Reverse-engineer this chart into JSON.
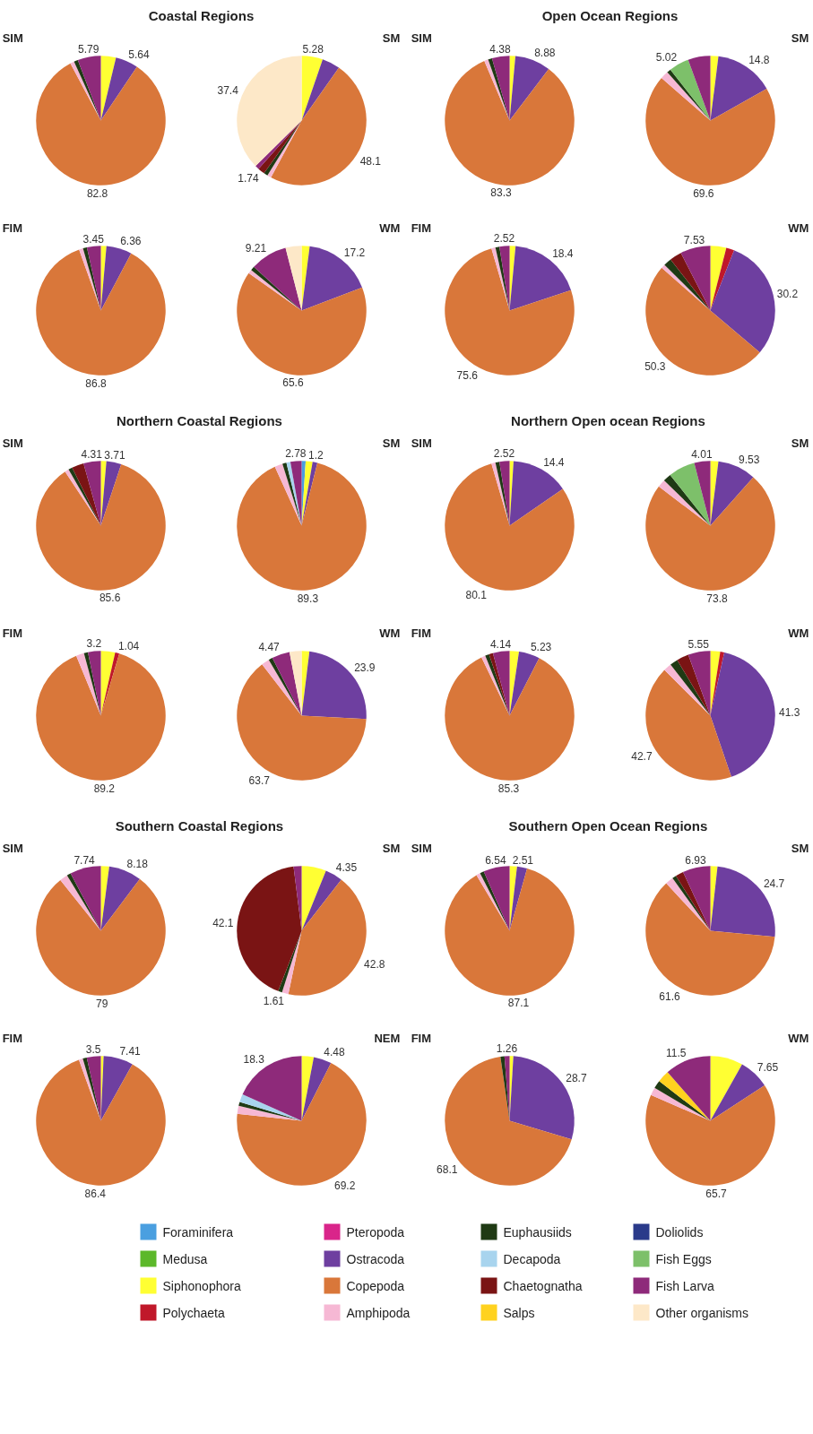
{
  "chart_data": [
    {
      "type": "pie",
      "title": "SIM",
      "legend": "bottom",
      "annotations": [
        "Coastal Regions"
      ],
      "categories": [
        "Foraminifera",
        "Medusa",
        "Siphonophora",
        "Polychaeta",
        "Pteropoda",
        "Ostracoda",
        "Copepoda",
        "Amphipoda",
        "Euphausiids",
        "Decapoda",
        "Chaetognatha",
        "Salps",
        "Doliolids",
        "Fish Eggs",
        "Fish Larva",
        "Other organisms"
      ],
      "values": [
        0,
        0,
        3.77,
        0,
        0,
        5.64,
        82.8,
        1,
        1,
        0,
        0,
        0,
        0,
        0,
        5.79,
        0
      ],
      "colors": [
        "#4a9fe0",
        "#5cb82a",
        "#ffff33",
        "#c0182a",
        "#d9258a",
        "#6e3fa0",
        "#d9773a",
        "#f6b8d4",
        "#1f3a14",
        "#a8d4ee",
        "#7a1414",
        "#ffd21f",
        "#2a3a8a",
        "#7dc06a",
        "#8e2a7a",
        "#fde8c8"
      ],
      "value_labels": [
        null,
        null,
        null,
        null,
        null,
        "5.64",
        "82.8",
        null,
        null,
        null,
        null,
        null,
        null,
        null,
        "5.79",
        null
      ]
    },
    {
      "type": "pie",
      "title": "SM",
      "categories": [
        null,
        null,
        null,
        null,
        null,
        null,
        null,
        null,
        null,
        null,
        null,
        null,
        null,
        null,
        null,
        null
      ],
      "values": [
        0,
        0,
        5.28,
        0,
        0,
        4.48,
        48.1,
        1,
        1,
        0,
        1.74,
        0,
        0,
        0,
        1,
        37.4
      ],
      "colors": [
        "#4a9fe0",
        "#5cb82a",
        "#ffff33",
        "#c0182a",
        "#d9258a",
        "#6e3fa0",
        "#d9773a",
        "#f6b8d4",
        "#1f3a14",
        "#a8d4ee",
        "#7a1414",
        "#ffd21f",
        "#2a3a8a",
        "#7dc06a",
        "#8e2a7a",
        "#fde8c8"
      ],
      "value_labels": [
        null,
        null,
        "5.28",
        null,
        null,
        null,
        "48.1",
        null,
        null,
        null,
        "1.74",
        null,
        null,
        null,
        null,
        "37.4"
      ]
    },
    {
      "type": "pie",
      "title": "FIM",
      "categories": [
        null,
        null,
        null,
        null,
        null,
        null,
        null,
        null,
        null,
        null,
        null,
        null,
        null,
        null,
        null,
        null
      ],
      "values": [
        0,
        0,
        1.39,
        0,
        0,
        6.36,
        86.8,
        1,
        1,
        0,
        0,
        0,
        0,
        0,
        3.45,
        0
      ],
      "colors": [
        "#4a9fe0",
        "#5cb82a",
        "#ffff33",
        "#c0182a",
        "#d9258a",
        "#6e3fa0",
        "#d9773a",
        "#f6b8d4",
        "#1f3a14",
        "#a8d4ee",
        "#7a1414",
        "#ffd21f",
        "#2a3a8a",
        "#7dc06a",
        "#8e2a7a",
        "#fde8c8"
      ],
      "value_labels": [
        null,
        null,
        null,
        null,
        null,
        "6.36",
        "86.8",
        null,
        null,
        null,
        null,
        null,
        null,
        null,
        "3.45",
        null
      ]
    },
    {
      "type": "pie",
      "title": "WM",
      "categories": [
        null,
        null,
        null,
        null,
        null,
        null,
        null,
        null,
        null,
        null,
        null,
        null,
        null,
        null,
        null,
        null
      ],
      "values": [
        0,
        0,
        1.99,
        0,
        0,
        17.2,
        65.6,
        1,
        1,
        0,
        0,
        0,
        0,
        0,
        9.21,
        4
      ],
      "colors": [
        "#4a9fe0",
        "#5cb82a",
        "#ffff33",
        "#c0182a",
        "#d9258a",
        "#6e3fa0",
        "#d9773a",
        "#f6b8d4",
        "#1f3a14",
        "#a8d4ee",
        "#7a1414",
        "#ffd21f",
        "#2a3a8a",
        "#7dc06a",
        "#8e2a7a",
        "#fde8c8"
      ],
      "value_labels": [
        null,
        null,
        null,
        null,
        null,
        "17.2",
        "65.6",
        null,
        null,
        null,
        null,
        null,
        null,
        null,
        "9.21",
        null
      ]
    },
    {
      "type": "pie",
      "title": "SIM",
      "annotations": [
        "Open Ocean Regions"
      ],
      "categories": [
        null,
        null,
        null,
        null,
        null,
        null,
        null,
        null,
        null,
        null,
        null,
        null,
        null,
        null,
        null,
        null
      ],
      "values": [
        0,
        0,
        1.44,
        0,
        0,
        8.88,
        83.3,
        1,
        1,
        0,
        0,
        0,
        0,
        0,
        4.38,
        0
      ],
      "colors": [
        "#4a9fe0",
        "#5cb82a",
        "#ffff33",
        "#c0182a",
        "#d9258a",
        "#6e3fa0",
        "#d9773a",
        "#f6b8d4",
        "#1f3a14",
        "#a8d4ee",
        "#7a1414",
        "#ffd21f",
        "#2a3a8a",
        "#7dc06a",
        "#8e2a7a",
        "#fde8c8"
      ],
      "value_labels": [
        null,
        null,
        null,
        null,
        null,
        "8.88",
        "83.3",
        null,
        null,
        null,
        null,
        null,
        null,
        null,
        "4.38",
        null
      ]
    },
    {
      "type": "pie",
      "title": "SM",
      "categories": [
        null,
        null,
        null,
        null,
        null,
        null,
        null,
        null,
        null,
        null,
        null,
        null,
        null,
        null,
        null,
        null
      ],
      "values": [
        0,
        0,
        2,
        0,
        0,
        14.8,
        69.6,
        2,
        1,
        0,
        0,
        0,
        0,
        5.02,
        5.58,
        0
      ],
      "colors": [
        "#4a9fe0",
        "#5cb82a",
        "#ffff33",
        "#c0182a",
        "#d9258a",
        "#6e3fa0",
        "#d9773a",
        "#f6b8d4",
        "#1f3a14",
        "#a8d4ee",
        "#7a1414",
        "#ffd21f",
        "#2a3a8a",
        "#7dc06a",
        "#8e2a7a",
        "#fde8c8"
      ],
      "value_labels": [
        null,
        null,
        null,
        null,
        null,
        "14.8",
        "69.6",
        null,
        null,
        null,
        null,
        null,
        null,
        "5.02",
        null,
        null
      ]
    },
    {
      "type": "pie",
      "title": "FIM",
      "categories": [
        null,
        null,
        null,
        null,
        null,
        null,
        null,
        null,
        null,
        null,
        null,
        null,
        null,
        null,
        null,
        null
      ],
      "values": [
        0,
        0,
        1.48,
        0,
        0,
        18.4,
        75.6,
        1,
        1,
        0,
        0,
        0,
        0,
        0,
        2.52,
        0
      ],
      "colors": [
        "#4a9fe0",
        "#5cb82a",
        "#ffff33",
        "#c0182a",
        "#d9258a",
        "#6e3fa0",
        "#d9773a",
        "#f6b8d4",
        "#1f3a14",
        "#a8d4ee",
        "#7a1414",
        "#ffd21f",
        "#2a3a8a",
        "#7dc06a",
        "#8e2a7a",
        "#fde8c8"
      ],
      "value_labels": [
        null,
        null,
        null,
        null,
        null,
        "18.4",
        "75.6",
        null,
        null,
        null,
        null,
        null,
        null,
        null,
        "2.52",
        null
      ]
    },
    {
      "type": "pie",
      "title": "WM",
      "categories": [
        null,
        null,
        null,
        null,
        null,
        null,
        null,
        null,
        null,
        null,
        null,
        null,
        null,
        null,
        null,
        null
      ],
      "values": [
        0,
        0,
        3.97,
        2,
        0,
        30.2,
        50.3,
        1,
        2,
        0,
        3,
        0,
        0,
        0,
        7.53,
        0
      ],
      "colors": [
        "#4a9fe0",
        "#5cb82a",
        "#ffff33",
        "#c0182a",
        "#d9258a",
        "#6e3fa0",
        "#d9773a",
        "#f6b8d4",
        "#1f3a14",
        "#a8d4ee",
        "#7a1414",
        "#ffd21f",
        "#2a3a8a",
        "#7dc06a",
        "#8e2a7a",
        "#fde8c8"
      ],
      "value_labels": [
        null,
        null,
        null,
        null,
        null,
        "30.2",
        "50.3",
        null,
        null,
        null,
        null,
        null,
        null,
        null,
        "7.53",
        null
      ]
    },
    {
      "type": "pie",
      "title": "SIM",
      "annotations": [
        "Northern Coastal  Regions"
      ],
      "categories": [
        null,
        null,
        null,
        null,
        null,
        null,
        null,
        null,
        null,
        null,
        null,
        null,
        null,
        null,
        null,
        null
      ],
      "values": [
        0,
        0,
        1.38,
        0,
        0,
        3.71,
        85.6,
        1,
        1,
        0,
        3,
        0,
        0,
        0,
        4.31,
        0
      ],
      "colors": [
        "#4a9fe0",
        "#5cb82a",
        "#ffff33",
        "#c0182a",
        "#d9258a",
        "#6e3fa0",
        "#d9773a",
        "#f6b8d4",
        "#1f3a14",
        "#a8d4ee",
        "#7a1414",
        "#ffd21f",
        "#2a3a8a",
        "#7dc06a",
        "#8e2a7a",
        "#fde8c8"
      ],
      "value_labels": [
        null,
        null,
        null,
        null,
        null,
        "3.71",
        "85.6",
        null,
        null,
        null,
        null,
        null,
        null,
        null,
        "4.31",
        null
      ]
    },
    {
      "type": "pie",
      "title": "SM",
      "categories": [
        null,
        null,
        null,
        null,
        null,
        null,
        null,
        null,
        null,
        null,
        null,
        null,
        null,
        null,
        null,
        null
      ],
      "values": [
        1,
        0,
        1.72,
        0,
        0,
        1.2,
        89.3,
        2,
        1,
        1,
        0,
        0,
        0,
        0,
        2.78,
        0
      ],
      "colors": [
        "#4a9fe0",
        "#5cb82a",
        "#ffff33",
        "#c0182a",
        "#d9258a",
        "#6e3fa0",
        "#d9773a",
        "#f6b8d4",
        "#1f3a14",
        "#a8d4ee",
        "#7a1414",
        "#ffd21f",
        "#2a3a8a",
        "#7dc06a",
        "#8e2a7a",
        "#fde8c8"
      ],
      "value_labels": [
        null,
        null,
        null,
        null,
        null,
        "1.2",
        "89.3",
        null,
        null,
        null,
        null,
        null,
        null,
        null,
        "2.78",
        null
      ]
    },
    {
      "type": "pie",
      "title": "FIM",
      "categories": [
        null,
        null,
        null,
        null,
        null,
        null,
        null,
        null,
        null,
        null,
        null,
        null,
        null,
        null,
        null,
        null
      ],
      "values": [
        0,
        0,
        3.56,
        1.04,
        0,
        0,
        89.2,
        2,
        1,
        0,
        0,
        0,
        0,
        0,
        3.2,
        0
      ],
      "colors": [
        "#4a9fe0",
        "#5cb82a",
        "#ffff33",
        "#c0182a",
        "#d9258a",
        "#6e3fa0",
        "#d9773a",
        "#f6b8d4",
        "#1f3a14",
        "#a8d4ee",
        "#7a1414",
        "#ffd21f",
        "#2a3a8a",
        "#7dc06a",
        "#8e2a7a",
        "#fde8c8"
      ],
      "value_labels": [
        null,
        null,
        null,
        "1.04",
        null,
        null,
        "89.2",
        null,
        null,
        null,
        null,
        null,
        null,
        null,
        "3.2",
        null
      ]
    },
    {
      "type": "pie",
      "title": "WM",
      "categories": [
        null,
        null,
        null,
        null,
        null,
        null,
        null,
        null,
        null,
        null,
        null,
        null,
        null,
        null,
        null,
        null
      ],
      "values": [
        0,
        0,
        1.93,
        0,
        0,
        23.9,
        63.7,
        2,
        1,
        0,
        0,
        0,
        0,
        0,
        4.47,
        3
      ],
      "colors": [
        "#4a9fe0",
        "#5cb82a",
        "#ffff33",
        "#c0182a",
        "#d9258a",
        "#6e3fa0",
        "#d9773a",
        "#f6b8d4",
        "#1f3a14",
        "#a8d4ee",
        "#7a1414",
        "#ffd21f",
        "#2a3a8a",
        "#7dc06a",
        "#8e2a7a",
        "#fde8c8"
      ],
      "value_labels": [
        null,
        null,
        null,
        null,
        null,
        "23.9",
        "63.7",
        null,
        null,
        null,
        null,
        null,
        null,
        null,
        "4.47",
        null
      ]
    },
    {
      "type": "pie",
      "title": "SIM",
      "annotations": [
        "Northern Open ocean  Regions"
      ],
      "categories": [
        null,
        null,
        null,
        null,
        null,
        null,
        null,
        null,
        null,
        null,
        null,
        null,
        null,
        null,
        null,
        null
      ],
      "values": [
        0,
        0,
        0.98,
        0,
        0,
        14.4,
        80.1,
        1,
        1,
        0,
        0,
        0,
        0,
        0,
        2.52,
        0
      ],
      "colors": [
        "#4a9fe0",
        "#5cb82a",
        "#ffff33",
        "#c0182a",
        "#d9258a",
        "#6e3fa0",
        "#d9773a",
        "#f6b8d4",
        "#1f3a14",
        "#a8d4ee",
        "#7a1414",
        "#ffd21f",
        "#2a3a8a",
        "#7dc06a",
        "#8e2a7a",
        "#fde8c8"
      ],
      "value_labels": [
        null,
        null,
        null,
        null,
        null,
        "14.4",
        "80.1",
        null,
        null,
        null,
        null,
        null,
        null,
        null,
        "2.52",
        null
      ]
    },
    {
      "type": "pie",
      "title": "SM",
      "categories": [
        null,
        null,
        null,
        null,
        null,
        null,
        null,
        null,
        null,
        null,
        null,
        null,
        null,
        null,
        null,
        null
      ],
      "values": [
        0,
        0,
        2,
        0,
        0,
        9.53,
        73.8,
        2,
        2,
        0,
        0,
        0,
        0,
        6.66,
        4.01,
        0
      ],
      "colors": [
        "#4a9fe0",
        "#5cb82a",
        "#ffff33",
        "#c0182a",
        "#d9258a",
        "#6e3fa0",
        "#d9773a",
        "#f6b8d4",
        "#1f3a14",
        "#a8d4ee",
        "#7a1414",
        "#ffd21f",
        "#2a3a8a",
        "#7dc06a",
        "#8e2a7a",
        "#fde8c8"
      ],
      "value_labels": [
        null,
        null,
        null,
        null,
        null,
        "9.53",
        "73.8",
        null,
        null,
        null,
        null,
        null,
        null,
        null,
        "4.01",
        null
      ]
    },
    {
      "type": "pie",
      "title": "FIM",
      "categories": [
        null,
        null,
        null,
        null,
        null,
        null,
        null,
        null,
        null,
        null,
        null,
        null,
        null,
        null,
        null,
        null
      ],
      "values": [
        0,
        0,
        2.33,
        0,
        0,
        5.23,
        85.3,
        1,
        1,
        0,
        1,
        0,
        0,
        0,
        4.14,
        0
      ],
      "colors": [
        "#4a9fe0",
        "#5cb82a",
        "#ffff33",
        "#c0182a",
        "#d9258a",
        "#6e3fa0",
        "#d9773a",
        "#f6b8d4",
        "#1f3a14",
        "#a8d4ee",
        "#7a1414",
        "#ffd21f",
        "#2a3a8a",
        "#7dc06a",
        "#8e2a7a",
        "#fde8c8"
      ],
      "value_labels": [
        null,
        null,
        null,
        null,
        null,
        "5.23",
        "85.3",
        null,
        null,
        null,
        null,
        null,
        null,
        null,
        "4.14",
        null
      ]
    },
    {
      "type": "pie",
      "title": "WM",
      "categories": [
        null,
        null,
        null,
        null,
        null,
        null,
        null,
        null,
        null,
        null,
        null,
        null,
        null,
        null,
        null,
        null
      ],
      "values": [
        0,
        0,
        2.45,
        1,
        0,
        41.3,
        42.7,
        2,
        2,
        0,
        3,
        0,
        0,
        0,
        5.55,
        0
      ],
      "colors": [
        "#4a9fe0",
        "#5cb82a",
        "#ffff33",
        "#c0182a",
        "#d9258a",
        "#6e3fa0",
        "#d9773a",
        "#f6b8d4",
        "#1f3a14",
        "#a8d4ee",
        "#7a1414",
        "#ffd21f",
        "#2a3a8a",
        "#7dc06a",
        "#8e2a7a",
        "#fde8c8"
      ],
      "value_labels": [
        null,
        null,
        null,
        null,
        null,
        "41.3",
        "42.7",
        null,
        null,
        null,
        null,
        null,
        null,
        null,
        "5.55",
        null
      ]
    },
    {
      "type": "pie",
      "title": "SIM",
      "annotations": [
        "Southern Coastal  Regions"
      ],
      "categories": [
        null,
        null,
        null,
        null,
        null,
        null,
        null,
        null,
        null,
        null,
        null,
        null,
        null,
        null,
        null,
        null
      ],
      "values": [
        0,
        0,
        2.08,
        0,
        0,
        8.18,
        79,
        2,
        1,
        0,
        0,
        0,
        0,
        0,
        7.74,
        0
      ],
      "colors": [
        "#4a9fe0",
        "#5cb82a",
        "#ffff33",
        "#c0182a",
        "#d9258a",
        "#6e3fa0",
        "#d9773a",
        "#f6b8d4",
        "#1f3a14",
        "#a8d4ee",
        "#7a1414",
        "#ffd21f",
        "#2a3a8a",
        "#7dc06a",
        "#8e2a7a",
        "#fde8c8"
      ],
      "value_labels": [
        null,
        null,
        null,
        null,
        null,
        "8.18",
        "79",
        null,
        null,
        null,
        null,
        null,
        null,
        null,
        "7.74",
        null
      ]
    },
    {
      "type": "pie",
      "title": "SM",
      "categories": [
        null,
        null,
        null,
        null,
        null,
        null,
        null,
        null,
        null,
        null,
        null,
        null,
        null,
        null,
        null,
        null
      ],
      "values": [
        0,
        0,
        6.14,
        0,
        0,
        4.35,
        42.8,
        1.61,
        1,
        0,
        42.1,
        0,
        0,
        0,
        2,
        0
      ],
      "colors": [
        "#4a9fe0",
        "#5cb82a",
        "#ffff33",
        "#c0182a",
        "#d9258a",
        "#6e3fa0",
        "#d9773a",
        "#f6b8d4",
        "#1f3a14",
        "#a8d4ee",
        "#7a1414",
        "#ffd21f",
        "#2a3a8a",
        "#7dc06a",
        "#8e2a7a",
        "#fde8c8"
      ],
      "value_labels": [
        null,
        null,
        null,
        null,
        null,
        "4.35",
        "42.8",
        "1.61",
        null,
        null,
        "42.1",
        null,
        null,
        null,
        null,
        null
      ]
    },
    {
      "type": "pie",
      "title": "FIM",
      "categories": [
        null,
        null,
        null,
        null,
        null,
        null,
        null,
        null,
        null,
        null,
        null,
        null,
        null,
        null,
        null,
        null
      ],
      "values": [
        0,
        0,
        0.69,
        0,
        0,
        7.41,
        86.4,
        1,
        1,
        0,
        0,
        0,
        0,
        0,
        3.5,
        0
      ],
      "colors": [
        "#4a9fe0",
        "#5cb82a",
        "#ffff33",
        "#c0182a",
        "#d9258a",
        "#6e3fa0",
        "#d9773a",
        "#f6b8d4",
        "#1f3a14",
        "#a8d4ee",
        "#7a1414",
        "#ffd21f",
        "#2a3a8a",
        "#7dc06a",
        "#8e2a7a",
        "#fde8c8"
      ],
      "value_labels": [
        null,
        null,
        null,
        null,
        null,
        "7.41",
        "86.4",
        null,
        null,
        null,
        null,
        null,
        null,
        null,
        "3.5",
        null
      ]
    },
    {
      "type": "pie",
      "title": "NEM",
      "categories": [
        null,
        null,
        null,
        null,
        null,
        null,
        null,
        null,
        null,
        null,
        null,
        null,
        null,
        null,
        null,
        null
      ],
      "values": [
        0,
        0,
        3.02,
        0,
        0,
        4.48,
        69.2,
        2,
        1,
        2,
        0,
        0,
        0,
        0,
        18.3,
        0
      ],
      "colors": [
        "#4a9fe0",
        "#5cb82a",
        "#ffff33",
        "#c0182a",
        "#d9258a",
        "#6e3fa0",
        "#d9773a",
        "#f6b8d4",
        "#1f3a14",
        "#a8d4ee",
        "#7a1414",
        "#ffd21f",
        "#2a3a8a",
        "#7dc06a",
        "#8e2a7a",
        "#fde8c8"
      ],
      "value_labels": [
        null,
        null,
        null,
        null,
        null,
        "4.48",
        "69.2",
        null,
        null,
        null,
        null,
        null,
        null,
        null,
        "18.3",
        null
      ]
    },
    {
      "type": "pie",
      "title": "SIM",
      "annotations": [
        "Southern Open Ocean  Regions"
      ],
      "categories": [
        null,
        null,
        null,
        null,
        null,
        null,
        null,
        null,
        null,
        null,
        null,
        null,
        null,
        null,
        null,
        null
      ],
      "values": [
        0,
        0,
        1.85,
        0,
        0,
        2.51,
        87.1,
        1,
        1,
        0,
        0,
        0,
        0,
        0,
        6.54,
        0
      ],
      "colors": [
        "#4a9fe0",
        "#5cb82a",
        "#ffff33",
        "#c0182a",
        "#d9258a",
        "#6e3fa0",
        "#d9773a",
        "#f6b8d4",
        "#1f3a14",
        "#a8d4ee",
        "#7a1414",
        "#ffd21f",
        "#2a3a8a",
        "#7dc06a",
        "#8e2a7a",
        "#fde8c8"
      ],
      "value_labels": [
        null,
        null,
        null,
        null,
        null,
        "2.51",
        "87.1",
        null,
        null,
        null,
        null,
        null,
        null,
        null,
        "6.54",
        null
      ]
    },
    {
      "type": "pie",
      "title": "SM",
      "categories": [
        null,
        null,
        null,
        null,
        null,
        null,
        null,
        null,
        null,
        null,
        null,
        null,
        null,
        null,
        null,
        null
      ],
      "values": [
        0,
        0,
        1.77,
        0,
        0,
        24.7,
        61.6,
        2,
        1,
        0,
        2,
        0,
        0,
        0,
        6.93,
        0
      ],
      "colors": [
        "#4a9fe0",
        "#5cb82a",
        "#ffff33",
        "#c0182a",
        "#d9258a",
        "#6e3fa0",
        "#d9773a",
        "#f6b8d4",
        "#1f3a14",
        "#a8d4ee",
        "#7a1414",
        "#ffd21f",
        "#2a3a8a",
        "#7dc06a",
        "#8e2a7a",
        "#fde8c8"
      ],
      "value_labels": [
        null,
        null,
        null,
        null,
        null,
        "24.7",
        "61.6",
        null,
        null,
        null,
        null,
        null,
        null,
        null,
        "6.93",
        null
      ]
    },
    {
      "type": "pie",
      "title": "FIM",
      "categories": [
        null,
        null,
        null,
        null,
        null,
        null,
        null,
        null,
        null,
        null,
        null,
        null,
        null,
        null,
        null,
        null
      ],
      "values": [
        0,
        0,
        0.94,
        0,
        0,
        28.7,
        68.1,
        0,
        1,
        0,
        0,
        0,
        0,
        0,
        1.26,
        0
      ],
      "colors": [
        "#4a9fe0",
        "#5cb82a",
        "#ffff33",
        "#c0182a",
        "#d9258a",
        "#6e3fa0",
        "#d9773a",
        "#f6b8d4",
        "#1f3a14",
        "#a8d4ee",
        "#7a1414",
        "#ffd21f",
        "#2a3a8a",
        "#7dc06a",
        "#8e2a7a",
        "#fde8c8"
      ],
      "value_labels": [
        null,
        null,
        null,
        null,
        null,
        "28.7",
        "68.1",
        null,
        null,
        null,
        null,
        null,
        null,
        null,
        "1.26",
        null
      ]
    },
    {
      "type": "pie",
      "title": "WM",
      "categories": [
        null,
        null,
        null,
        null,
        null,
        null,
        null,
        null,
        null,
        null,
        null,
        null,
        null,
        null,
        null,
        null
      ],
      "values": [
        0,
        0,
        8.15,
        0,
        0,
        7.65,
        65.7,
        2,
        2,
        0,
        0,
        3,
        0,
        0,
        11.5,
        0
      ],
      "colors": [
        "#4a9fe0",
        "#5cb82a",
        "#ffff33",
        "#c0182a",
        "#d9258a",
        "#6e3fa0",
        "#d9773a",
        "#f6b8d4",
        "#1f3a14",
        "#a8d4ee",
        "#7a1414",
        "#ffd21f",
        "#2a3a8a",
        "#7dc06a",
        "#8e2a7a",
        "#fde8c8"
      ],
      "value_labels": [
        null,
        null,
        null,
        null,
        null,
        "7.65",
        "65.7",
        null,
        null,
        null,
        null,
        null,
        null,
        null,
        "11.5",
        null
      ]
    }
  ]
}
